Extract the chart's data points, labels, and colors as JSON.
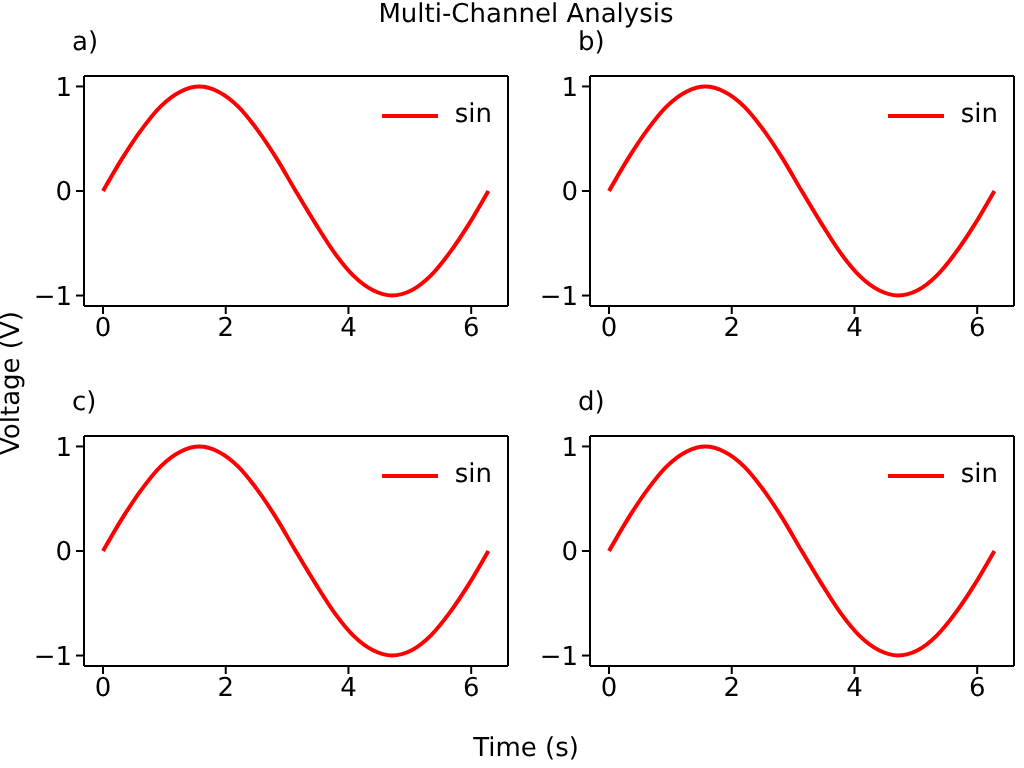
{
  "chart_data": [
    {
      "type": "line",
      "title": "a)",
      "annotations": [
        "Multi-Channel Analysis"
      ],
      "ylabel": "Voltage (V)",
      "x": [
        0,
        0.31,
        0.63,
        0.94,
        1.26,
        1.57,
        1.88,
        2.2,
        2.51,
        2.83,
        3.14,
        3.46,
        3.77,
        4.08,
        4.4,
        4.71,
        5.03,
        5.34,
        5.65,
        5.97,
        6.28
      ],
      "series": [
        {
          "name": "sin",
          "color": "#ff0000",
          "values": [
            0,
            0.31,
            0.59,
            0.81,
            0.95,
            1,
            0.95,
            0.81,
            0.59,
            0.31,
            0,
            -0.31,
            -0.59,
            -0.81,
            -0.95,
            -1,
            -0.95,
            -0.81,
            -0.59,
            -0.31,
            0
          ]
        }
      ],
      "xlim": [
        -0.31,
        6.6
      ],
      "xticks": [
        0,
        2,
        4,
        6
      ],
      "ylim": [
        -1.1,
        1.1
      ],
      "yticks": [
        -1,
        0,
        1
      ],
      "legend": "top right",
      "grid": false,
      "marker": "none",
      "line_style": "solid"
    },
    {
      "type": "line",
      "title": "b)",
      "x": [
        0,
        0.31,
        0.63,
        0.94,
        1.26,
        1.57,
        1.88,
        2.2,
        2.51,
        2.83,
        3.14,
        3.46,
        3.77,
        4.08,
        4.4,
        4.71,
        5.03,
        5.34,
        5.65,
        5.97,
        6.28
      ],
      "series": [
        {
          "name": "sin",
          "color": "#ff0000",
          "values": [
            0,
            0.31,
            0.59,
            0.81,
            0.95,
            1,
            0.95,
            0.81,
            0.59,
            0.31,
            0,
            -0.31,
            -0.59,
            -0.81,
            -0.95,
            -1,
            -0.95,
            -0.81,
            -0.59,
            -0.31,
            0
          ]
        }
      ],
      "xlim": [
        -0.31,
        6.6
      ],
      "xticks": [
        0,
        2,
        4,
        6
      ],
      "ylim": [
        -1.1,
        1.1
      ],
      "yticks": [
        -1,
        0,
        1
      ],
      "legend": "top right",
      "grid": false,
      "marker": "none",
      "line_style": "solid"
    },
    {
      "type": "line",
      "title": "c)",
      "xlabel": "Time (s)",
      "x": [
        0,
        0.31,
        0.63,
        0.94,
        1.26,
        1.57,
        1.88,
        2.2,
        2.51,
        2.83,
        3.14,
        3.46,
        3.77,
        4.08,
        4.4,
        4.71,
        5.03,
        5.34,
        5.65,
        5.97,
        6.28
      ],
      "series": [
        {
          "name": "sin",
          "color": "#ff0000",
          "values": [
            0,
            0.31,
            0.59,
            0.81,
            0.95,
            1,
            0.95,
            0.81,
            0.59,
            0.31,
            0,
            -0.31,
            -0.59,
            -0.81,
            -0.95,
            -1,
            -0.95,
            -0.81,
            -0.59,
            -0.31,
            0
          ]
        }
      ],
      "xlim": [
        -0.31,
        6.6
      ],
      "xticks": [
        0,
        2,
        4,
        6
      ],
      "ylim": [
        -1.1,
        1.1
      ],
      "yticks": [
        -1,
        0,
        1
      ],
      "legend": "top right",
      "grid": false,
      "marker": "none",
      "line_style": "solid"
    },
    {
      "type": "line",
      "title": "d)",
      "x": [
        0,
        0.31,
        0.63,
        0.94,
        1.26,
        1.57,
        1.88,
        2.2,
        2.51,
        2.83,
        3.14,
        3.46,
        3.77,
        4.08,
        4.4,
        4.71,
        5.03,
        5.34,
        5.65,
        5.97,
        6.28
      ],
      "series": [
        {
          "name": "sin",
          "color": "#ff0000",
          "values": [
            0,
            0.31,
            0.59,
            0.81,
            0.95,
            1,
            0.95,
            0.81,
            0.59,
            0.31,
            0,
            -0.31,
            -0.59,
            -0.81,
            -0.95,
            -1,
            -0.95,
            -0.81,
            -0.59,
            -0.31,
            0
          ]
        }
      ],
      "xlim": [
        -0.31,
        6.6
      ],
      "xticks": [
        0,
        2,
        4,
        6
      ],
      "ylim": [
        -1.1,
        1.1
      ],
      "yticks": [
        -1,
        0,
        1
      ],
      "legend": "top right",
      "grid": false,
      "marker": "none",
      "line_style": "solid"
    }
  ]
}
